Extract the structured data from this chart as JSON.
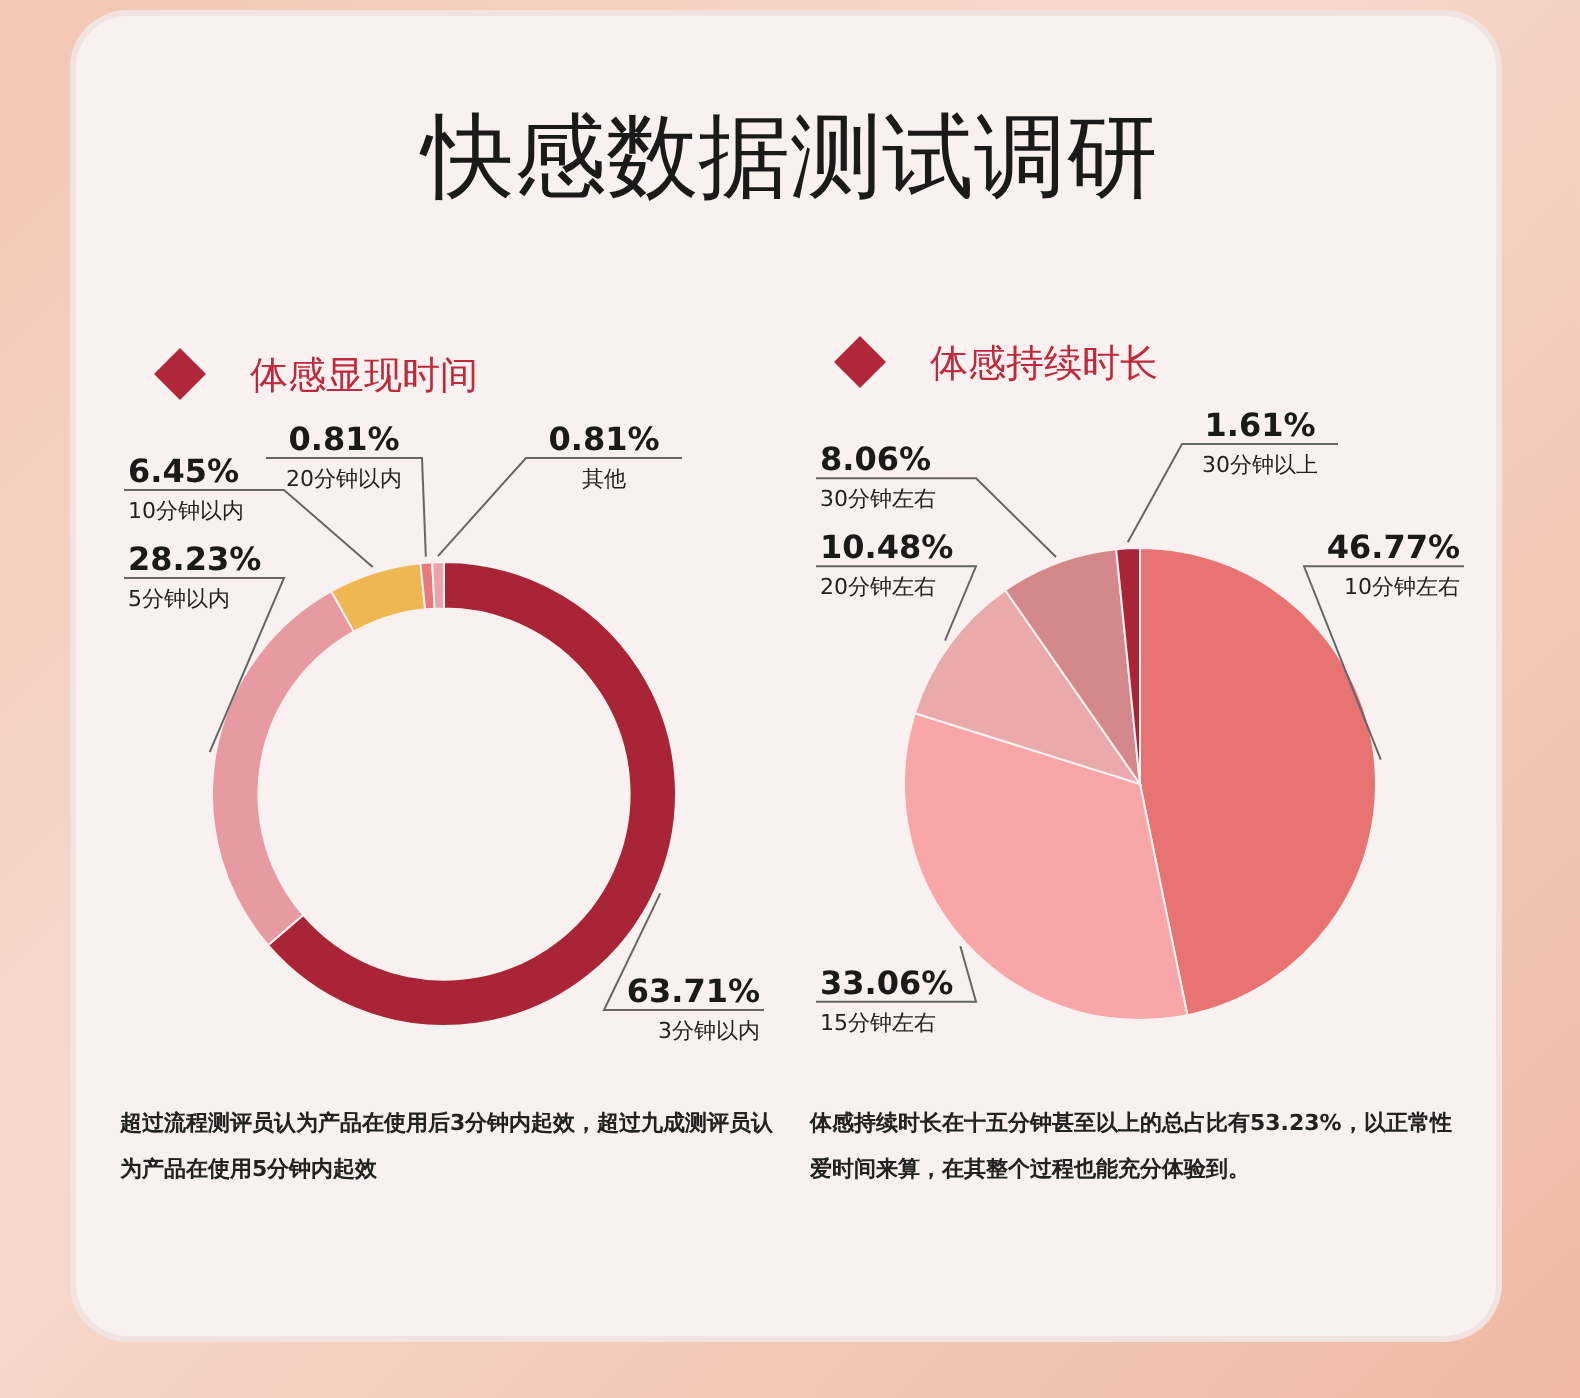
{
  "chart_data": [
    {
      "type": "donut",
      "title": "快感数据测试调研",
      "subtitle": "体感显现时间",
      "categories": [
        "3分钟以内",
        "5分钟以内",
        "10分钟以内",
        "20分钟以内",
        "其他"
      ],
      "values": [
        63.71,
        28.23,
        6.45,
        0.81,
        0.81
      ],
      "colors": [
        "#a92436",
        "#e89aa3",
        "#efb752",
        "#e8787c",
        "#eba3ab"
      ],
      "value_labels": [
        "63.71%",
        "28.23%",
        "6.45%",
        "0.81%",
        "0.81%"
      ],
      "annotations": [
        "超过流程测评员认为产品在使用后3分钟内起效，超过九成测评员认为产品在使用5分钟内起效"
      ]
    },
    {
      "type": "pie",
      "subtitle": "体感持续时长",
      "categories": [
        "10分钟左右",
        "15分钟左右",
        "20分钟左右",
        "30分钟左右",
        "30分钟以上"
      ],
      "values": [
        46.77,
        33.06,
        10.48,
        8.06,
        1.61
      ],
      "colors": [
        "#e87373",
        "#f9a6a9",
        "#eaaaab",
        "#d4888b",
        "#a92436"
      ],
      "value_labels": [
        "46.77%",
        "33.06%",
        "10.48%",
        "8.06%",
        "1.61%"
      ],
      "annotations": [
        "体感持续时长在十五分钟甚至以上的总占比有53.23%，以正常性爱时间来算，在其整个过程也能充分体验到。"
      ]
    }
  ]
}
